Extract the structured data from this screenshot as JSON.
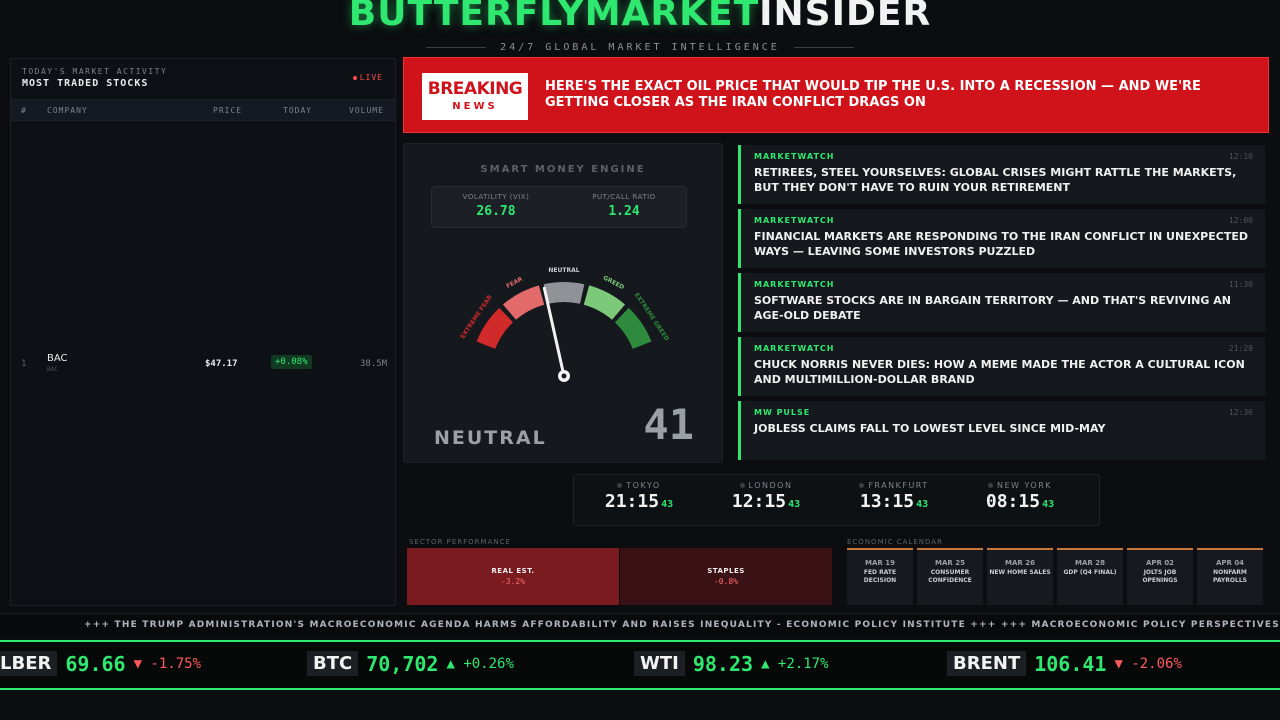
{
  "header": {
    "brand_green": "BUTTERFLYMARKET",
    "brand_white": "INSIDER",
    "tagline": "24/7 GLOBAL MARKET INTELLIGENCE"
  },
  "stocks": {
    "subtitle": "TODAY'S MARKET ACTIVITY",
    "title": "MOST TRADED STOCKS",
    "live": "LIVE",
    "columns": [
      "#",
      "COMPANY",
      "PRICE",
      "TODAY",
      "VOLUME"
    ],
    "rows": [
      {
        "rank": "1",
        "symbol": "BAC",
        "sub": "BAC",
        "price": "$47.17",
        "change": "+0.08%",
        "volume": "38.5M"
      }
    ]
  },
  "breaking": {
    "badge_top": "BREAKING",
    "badge_bottom": "NEWS",
    "headline": "HERE'S THE EXACT OIL PRICE THAT WOULD TIP THE U.S. INTO A RECESSION — AND WE'RE GETTING CLOSER AS THE IRAN CONFLICT DRAGS ON"
  },
  "gauge": {
    "title": "SMART MONEY ENGINE",
    "vix_label": "VOLATILITY (VIX)",
    "vix_value": "26.78",
    "pcr_label": "PUT/CALL RATIO",
    "pcr_value": "1.24",
    "zones": [
      "EXTREME FEAR",
      "FEAR",
      "NEUTRAL",
      "GREED",
      "EXTREME GREED"
    ],
    "zone_colors": [
      "#d02a2a",
      "#e36a6a",
      "#8f9398",
      "#7cc97a",
      "#2e8a3c"
    ],
    "level": 41,
    "state": "NEUTRAL",
    "score": "41"
  },
  "news": [
    {
      "source": "MARKETWATCH",
      "time": "12:10",
      "headline": "RETIREES, STEEL YOURSELVES: GLOBAL CRISES MIGHT RATTLE THE MARKETS, BUT THEY DON'T HAVE TO RUIN YOUR RETIREMENT"
    },
    {
      "source": "MARKETWATCH",
      "time": "12:00",
      "headline": "FINANCIAL MARKETS ARE RESPONDING TO THE IRAN CONFLICT IN UNEXPECTED WAYS — LEAVING SOME INVESTORS PUZZLED"
    },
    {
      "source": "MARKETWATCH",
      "time": "11:30",
      "headline": "SOFTWARE STOCKS ARE IN BARGAIN TERRITORY — AND THAT'S REVIVING AN AGE-OLD DEBATE"
    },
    {
      "source": "MARKETWATCH",
      "time": "21:29",
      "headline": "CHUCK NORRIS NEVER DIES: HOW A MEME MADE THE ACTOR A CULTURAL ICON AND MULTIMILLION-DOLLAR BRAND"
    },
    {
      "source": "MW PULSE",
      "time": "12:36",
      "headline": "JOBLESS CLAIMS FALL TO LOWEST LEVEL SINCE MID-MAY"
    }
  ],
  "clocks": [
    {
      "city": "TOKYO",
      "time": "21:15",
      "sec": "43"
    },
    {
      "city": "LONDON",
      "time": "12:15",
      "sec": "43"
    },
    {
      "city": "FRANKFURT",
      "time": "13:15",
      "sec": "43"
    },
    {
      "city": "NEW YORK",
      "time": "08:15",
      "sec": "43"
    }
  ],
  "sectors": {
    "title": "SECTOR PERFORMANCE",
    "items": [
      {
        "name": "REAL EST.",
        "change": "-3.2%",
        "color": "#7a1b20"
      },
      {
        "name": "STAPLES",
        "change": "-0.8%",
        "color": "#3a1114"
      }
    ]
  },
  "calendar": {
    "title": "ECONOMIC CALENDAR",
    "items": [
      {
        "date": "MAR 19",
        "event": "FED RATE DECISION"
      },
      {
        "date": "MAR 25",
        "event": "CONSUMER CONFIDENCE"
      },
      {
        "date": "MAR 26",
        "event": "NEW HOME SALES"
      },
      {
        "date": "MAR 28",
        "event": "GDP (Q4 FINAL)"
      },
      {
        "date": "APR 02",
        "event": "JOLTS JOB OPENINGS"
      },
      {
        "date": "APR 04",
        "event": "NONFARM PAYROLLS"
      }
    ]
  },
  "crawl": "+++ THE TRUMP ADMINISTRATION'S MACROECONOMIC AGENDA HARMS AFFORDABILITY AND RAISES INEQUALITY - ECONOMIC POLICY INSTITUTE +++ +++ MACROECONOMIC POLICY PERSPECTIVES: THE MACROECONOMIC",
  "quotes": [
    {
      "symbol": "LBER",
      "price": "69.66",
      "change": "▼ -1.75%",
      "dir": "dn"
    },
    {
      "symbol": "BTC",
      "price": "70,702",
      "change": "▲ +0.26%",
      "dir": "up"
    },
    {
      "symbol": "WTI",
      "price": "98.23",
      "change": "▲ +2.17%",
      "dir": "up"
    },
    {
      "symbol": "BRENT",
      "price": "106.41",
      "change": "▼ -2.06%",
      "dir": "dn"
    }
  ]
}
